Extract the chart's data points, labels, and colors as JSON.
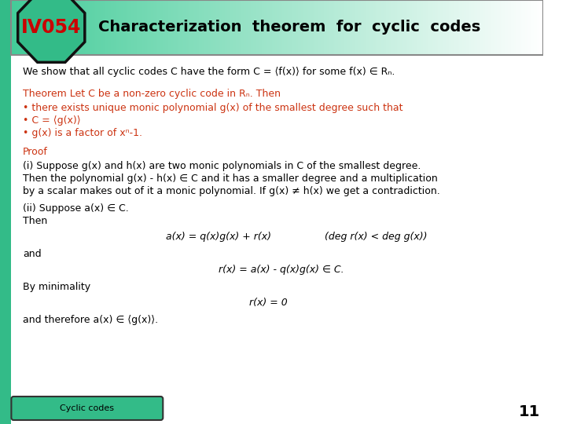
{
  "title": "Characterization  theorem  for  cyclic  codes",
  "slide_number": "IV054",
  "page_number": "11",
  "bg_color": "#ffffff",
  "header_bg_left": "#44cc99",
  "header_bg_right": "#ffffff",
  "octagon_bg": "#33bb88",
  "octagon_border": "#111111",
  "iv054_color": "#cc0000",
  "title_color": "#000000",
  "theorem_color": "#cc3311",
  "proof_color": "#cc3311",
  "body_color": "#000000",
  "left_bar_color": "#33bb88",
  "footer_bg": "#33bb88",
  "footer_text": "Cyclic codes",
  "footer_text_color": "#000000",
  "line1": "We show that all cyclic codes C have the form C = ⟨f(x)⟩ for some f(x) ∈ Rₙ.",
  "theorem_line": "Theorem Let C be a non-zero cyclic code in Rₙ. Then",
  "bullet1": "• there exists unique monic polynomial g(x) of the smallest degree such that",
  "bullet2": "• C = ⟨g(x)⟩",
  "bullet3": "• g(x) is a factor of xⁿ-1.",
  "proof_label": "Proof",
  "proof_i": "(i) Suppose g(x) and h(x) are two monic polynomials in C of the smallest degree.",
  "proof_i2": "Then the polynomial g(x) - h(x) ∈ C and it has a smaller degree and a multiplication",
  "proof_i3": "by a scalar makes out of it a monic polynomial. If g(x) ≠ h(x) we get a contradiction.",
  "proof_ii": "(ii) Suppose a(x) ∈ C.",
  "proof_then": "Then",
  "eq1_left": "a(x) = q(x)g(x) + r(x)",
  "eq1_right": "(deg r(x) < deg g(x))",
  "proof_and": "and",
  "eq2": "r(x) = a(x) - q(x)g(x) ∈ C.",
  "proof_by_min": "By minimality",
  "eq3": "r(x) = 0",
  "proof_final": "and therefore a(x) ∈ ⟨g(x)⟩."
}
